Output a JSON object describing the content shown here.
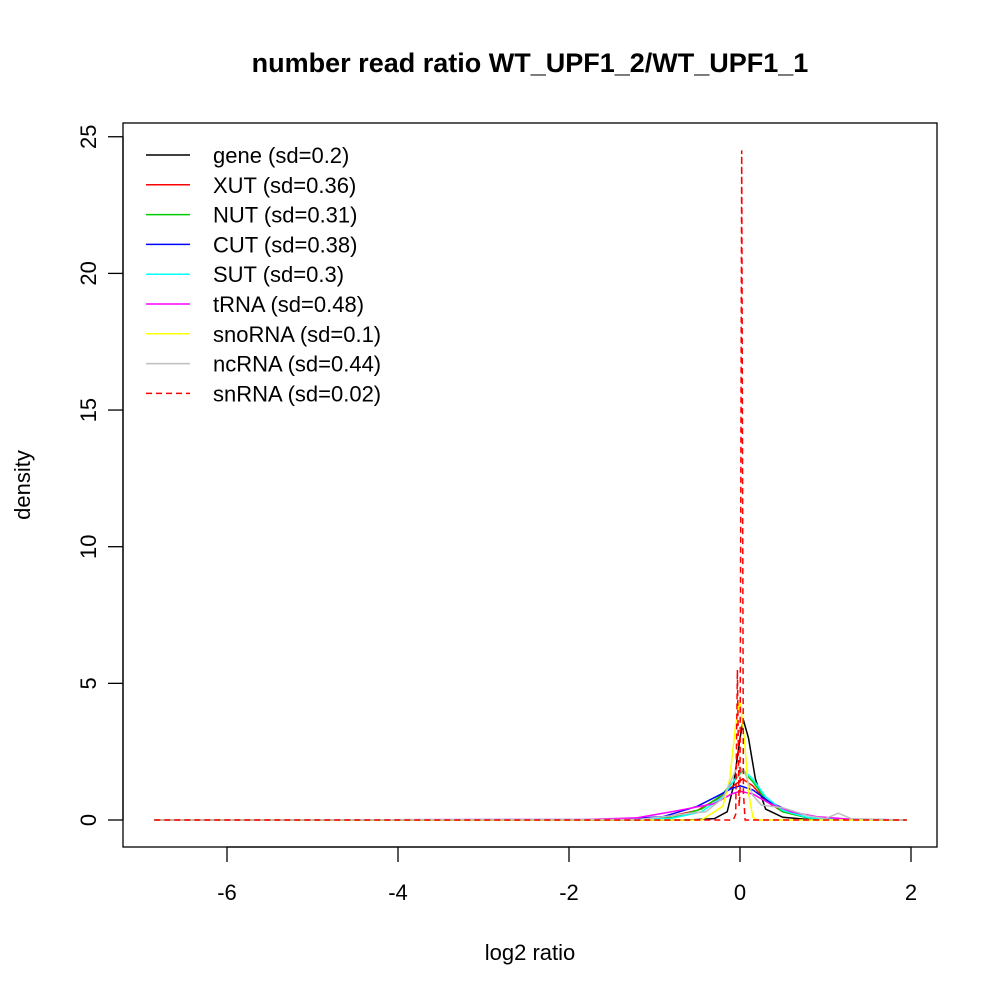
{
  "chart_data": {
    "type": "line",
    "title": "number read ratio WT_UPF1_2/WT_UPF1_1",
    "xlabel": "log2 ratio",
    "ylabel": "density",
    "xlim": [
      -7.2,
      2.3
    ],
    "ylim": [
      -1,
      26
    ],
    "xticks": [
      -6,
      -4,
      -2,
      0,
      2
    ],
    "yticks": [
      0,
      5,
      10,
      15,
      20,
      25
    ],
    "grid": false,
    "legend_position": "top-left",
    "series": [
      {
        "name": "gene (sd=0.2)",
        "color": "#000000",
        "dash": false,
        "points": [
          [
            -6.85,
            0
          ],
          [
            -0.6,
            0
          ],
          [
            -0.3,
            0.05
          ],
          [
            -0.15,
            0.3
          ],
          [
            -0.08,
            1.2
          ],
          [
            0,
            3.0
          ],
          [
            0.04,
            3.66
          ],
          [
            0.1,
            3.0
          ],
          [
            0.18,
            1.5
          ],
          [
            0.3,
            0.4
          ],
          [
            0.5,
            0.1
          ],
          [
            0.8,
            0.02
          ],
          [
            1.95,
            0
          ]
        ]
      },
      {
        "name": "XUT (sd=0.36)",
        "color": "#ff0000",
        "dash": false,
        "points": [
          [
            -6.85,
            0
          ],
          [
            -1.5,
            0.01
          ],
          [
            -0.9,
            0.08
          ],
          [
            -0.5,
            0.35
          ],
          [
            -0.25,
            0.8
          ],
          [
            -0.1,
            1.2
          ],
          [
            0.03,
            1.5
          ],
          [
            0.15,
            1.25
          ],
          [
            0.3,
            0.7
          ],
          [
            0.5,
            0.3
          ],
          [
            0.8,
            0.08
          ],
          [
            1.2,
            0.02
          ],
          [
            1.95,
            0
          ]
        ]
      },
      {
        "name": "NUT (sd=0.31)",
        "color": "#00cd00",
        "dash": false,
        "points": [
          [
            -6.85,
            0
          ],
          [
            -1.4,
            0.01
          ],
          [
            -0.8,
            0.08
          ],
          [
            -0.45,
            0.4
          ],
          [
            -0.22,
            0.9
          ],
          [
            -0.08,
            1.4
          ],
          [
            0.03,
            1.8
          ],
          [
            0.15,
            1.4
          ],
          [
            0.3,
            0.75
          ],
          [
            0.5,
            0.3
          ],
          [
            0.8,
            0.07
          ],
          [
            1.2,
            0.01
          ],
          [
            1.95,
            0
          ]
        ]
      },
      {
        "name": "CUT (sd=0.38)",
        "color": "#0000ff",
        "dash": false,
        "points": [
          [
            -6.85,
            0
          ],
          [
            -1.5,
            0.02
          ],
          [
            -0.9,
            0.12
          ],
          [
            -0.5,
            0.5
          ],
          [
            -0.25,
            0.9
          ],
          [
            -0.1,
            1.15
          ],
          [
            0.0,
            1.25
          ],
          [
            0.15,
            1.1
          ],
          [
            0.35,
            0.65
          ],
          [
            0.6,
            0.3
          ],
          [
            0.9,
            0.1
          ],
          [
            1.2,
            0.03
          ],
          [
            1.95,
            0
          ]
        ]
      },
      {
        "name": "SUT (sd=0.3)",
        "color": "#00ffff",
        "dash": false,
        "points": [
          [
            -6.85,
            0
          ],
          [
            -1.3,
            0.01
          ],
          [
            -0.8,
            0.06
          ],
          [
            -0.45,
            0.3
          ],
          [
            -0.2,
            0.85
          ],
          [
            -0.07,
            1.45
          ],
          [
            0.03,
            1.85
          ],
          [
            0.15,
            1.5
          ],
          [
            0.3,
            0.85
          ],
          [
            0.5,
            0.35
          ],
          [
            0.8,
            0.08
          ],
          [
            1.2,
            0.01
          ],
          [
            1.95,
            0
          ]
        ]
      },
      {
        "name": "tRNA (sd=0.48)",
        "color": "#ff00ff",
        "dash": false,
        "points": [
          [
            -6.85,
            0
          ],
          [
            -1.8,
            0.02
          ],
          [
            -1.2,
            0.08
          ],
          [
            -0.8,
            0.3
          ],
          [
            -0.55,
            0.45
          ],
          [
            -0.3,
            0.6
          ],
          [
            -0.1,
            0.95
          ],
          [
            0.0,
            1.05
          ],
          [
            0.15,
            0.95
          ],
          [
            0.35,
            0.6
          ],
          [
            0.6,
            0.3
          ],
          [
            0.9,
            0.12
          ],
          [
            1.3,
            0.03
          ],
          [
            1.95,
            0
          ]
        ]
      },
      {
        "name": "snoRNA (sd=0.1)",
        "color": "#ffff00",
        "dash": false,
        "points": [
          [
            -6.85,
            0
          ],
          [
            -0.45,
            0
          ],
          [
            -0.3,
            0.3
          ],
          [
            -0.2,
            0.5
          ],
          [
            -0.12,
            1.5
          ],
          [
            -0.05,
            3.5
          ],
          [
            0.0,
            4.4
          ],
          [
            0.05,
            3.0
          ],
          [
            0.1,
            1.0
          ],
          [
            0.15,
            0.1
          ],
          [
            0.2,
            0
          ],
          [
            1.95,
            0
          ]
        ]
      },
      {
        "name": "ncRNA (sd=0.44)",
        "color": "#bebebe",
        "dash": false,
        "points": [
          [
            -6.85,
            0
          ],
          [
            -1.2,
            0.02
          ],
          [
            -0.8,
            0.15
          ],
          [
            -0.6,
            0.25
          ],
          [
            -0.4,
            0.3
          ],
          [
            -0.2,
            0.8
          ],
          [
            -0.03,
            1.95
          ],
          [
            0.05,
            1.8
          ],
          [
            0.15,
            0.9
          ],
          [
            0.25,
            0.55
          ],
          [
            0.5,
            0.45
          ],
          [
            0.8,
            0.15
          ],
          [
            1.0,
            0.05
          ],
          [
            1.15,
            0.25
          ],
          [
            1.3,
            0.05
          ],
          [
            1.95,
            0
          ]
        ]
      },
      {
        "name": "snRNA (sd=0.02)",
        "color": "#ff0000",
        "dash": true,
        "points": [
          [
            -6.85,
            0
          ],
          [
            -0.08,
            0
          ],
          [
            -0.05,
            0.2
          ],
          [
            -0.03,
            5.5
          ],
          [
            -0.01,
            0.5
          ],
          [
            0.0,
            1.0
          ],
          [
            0.02,
            24.5
          ],
          [
            0.04,
            1.0
          ],
          [
            0.06,
            0
          ],
          [
            1.95,
            0
          ]
        ]
      }
    ]
  }
}
